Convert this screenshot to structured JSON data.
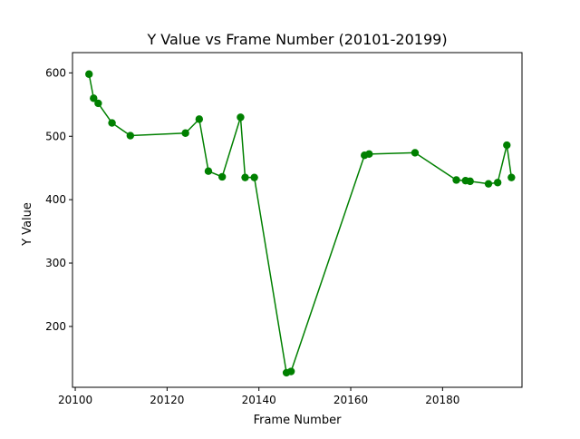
{
  "chart_data": {
    "type": "line",
    "title": "Y Value vs Frame Number (20101-20199)",
    "xlabel": "Frame Number",
    "ylabel": "Y Value",
    "xlim": [
      20099.4,
      20197.3
    ],
    "ylim": [
      104,
      632
    ],
    "xticks": [
      20100,
      20120,
      20140,
      20160,
      20180
    ],
    "yticks": [
      200,
      300,
      400,
      500,
      600
    ],
    "grid": false,
    "series": [
      {
        "color": "#008000",
        "marker": "circle",
        "points": [
          {
            "x": 20103,
            "y": 598
          },
          {
            "x": 20104,
            "y": 560
          },
          {
            "x": 20105,
            "y": 552
          },
          {
            "x": 20108,
            "y": 521
          },
          {
            "x": 20112,
            "y": 501
          },
          {
            "x": 20124,
            "y": 505
          },
          {
            "x": 20127,
            "y": 527
          },
          {
            "x": 20129,
            "y": 445
          },
          {
            "x": 20132,
            "y": 436
          },
          {
            "x": 20136,
            "y": 530
          },
          {
            "x": 20137,
            "y": 435
          },
          {
            "x": 20139,
            "y": 435
          },
          {
            "x": 20146,
            "y": 127
          },
          {
            "x": 20147,
            "y": 129
          },
          {
            "x": 20163,
            "y": 470
          },
          {
            "x": 20164,
            "y": 472
          },
          {
            "x": 20174,
            "y": 474
          },
          {
            "x": 20183,
            "y": 431
          },
          {
            "x": 20185,
            "y": 430
          },
          {
            "x": 20186,
            "y": 429
          },
          {
            "x": 20190,
            "y": 425
          },
          {
            "x": 20192,
            "y": 427
          },
          {
            "x": 20194,
            "y": 486
          },
          {
            "x": 20195,
            "y": 435
          }
        ]
      }
    ]
  }
}
